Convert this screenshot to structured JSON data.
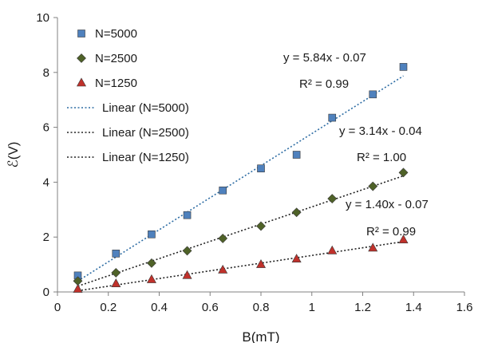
{
  "chart_data": {
    "type": "scatter",
    "xlabel": "B(mT)",
    "ylabel": "ℰ(V)",
    "xlim": [
      0,
      1.6
    ],
    "ylim": [
      0,
      10
    ],
    "xticks": [
      "0",
      "0.2",
      "0.4",
      "0.6",
      "0.8",
      "1",
      "1.2",
      "1.4",
      "1.6"
    ],
    "yticks": [
      "0",
      "2",
      "4",
      "6",
      "8",
      "10"
    ],
    "grid": false,
    "legend_position": "top-left",
    "series": [
      {
        "name": "N=5000",
        "marker": "square",
        "color": "#4f81bd",
        "x": [
          0.08,
          0.23,
          0.37,
          0.51,
          0.65,
          0.8,
          0.94,
          1.08,
          1.24,
          1.36
        ],
        "y": [
          0.6,
          1.4,
          2.1,
          2.8,
          3.7,
          4.5,
          5.0,
          6.35,
          7.2,
          8.2
        ]
      },
      {
        "name": "N=2500",
        "marker": "diamond",
        "color": "#4f6228",
        "x": [
          0.08,
          0.23,
          0.37,
          0.51,
          0.65,
          0.8,
          0.94,
          1.08,
          1.24,
          1.36
        ],
        "y": [
          0.4,
          0.7,
          1.05,
          1.5,
          1.95,
          2.4,
          2.9,
          3.4,
          3.85,
          4.35
        ]
      },
      {
        "name": "N=1250",
        "marker": "triangle",
        "color": "#c0312b",
        "x": [
          0.08,
          0.23,
          0.37,
          0.51,
          0.65,
          0.8,
          0.94,
          1.08,
          1.24,
          1.36
        ],
        "y": [
          0.1,
          0.3,
          0.45,
          0.6,
          0.8,
          1.0,
          1.2,
          1.5,
          1.6,
          1.9
        ]
      }
    ],
    "trendlines": [
      {
        "name": "Linear (N=5000)",
        "color": "#2e6da4",
        "slope": 5.84,
        "intercept": -0.07,
        "x_range": [
          0.08,
          1.36
        ],
        "equation": "y = 5.84x - 0.07",
        "r2": "R² = 0.99"
      },
      {
        "name": "Linear (N=2500)",
        "color": "#222222",
        "slope": 3.14,
        "intercept": -0.04,
        "x_range": [
          0.08,
          1.36
        ],
        "equation": "y = 3.14x - 0.04",
        "r2": "R² = 1.00"
      },
      {
        "name": "Linear (N=1250)",
        "color": "#222222",
        "slope": 1.4,
        "intercept": -0.07,
        "x_range": [
          0.08,
          1.36
        ],
        "equation": "y = 1.40x - 0.07",
        "r2": "R² = 0.99"
      }
    ]
  }
}
